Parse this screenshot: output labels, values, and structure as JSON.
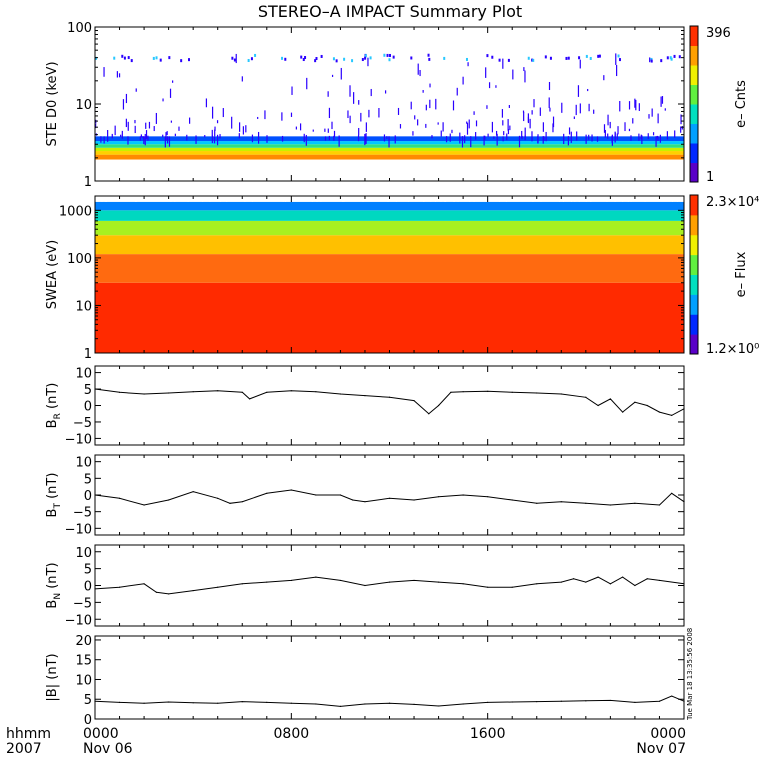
{
  "title": "STEREO–A IMPACT Summary Plot",
  "timestamp_text": "Tue Mar 18 13:35:56 2008",
  "time_axis": {
    "label_top": "hhmm",
    "label_bottom": "2007",
    "ticks": [
      {
        "hour": 0,
        "top": "0000",
        "bottom": "Nov 06"
      },
      {
        "hour": 8,
        "top": "0800",
        "bottom": ""
      },
      {
        "hour": 16,
        "top": "1600",
        "bottom": ""
      },
      {
        "hour": 24,
        "top": "0000",
        "bottom": "Nov 07"
      }
    ],
    "range_hours": [
      0,
      24
    ]
  },
  "colors": {
    "ste_streak": "#2a00ff",
    "ste_dots": "#28c8ff"
  },
  "chart_data": [
    {
      "id": "ste",
      "type": "heatmap",
      "ylabel": "STE D0 (keV)",
      "yscale": "log",
      "ylim": [
        1,
        100
      ],
      "yticks": [
        {
          "v": 1,
          "label": "1"
        },
        {
          "v": 10,
          "label": "10"
        },
        {
          "v": 100,
          "label": "100"
        }
      ],
      "colorbar": {
        "label": "e– Cnts",
        "max_label": "396",
        "min_label": "1"
      },
      "bands": [
        {
          "e_low": 1.9,
          "e_high": 2.2,
          "color": "#ff8a00"
        },
        {
          "e_low": 2.2,
          "e_high": 2.45,
          "color": "#ffd000"
        },
        {
          "e_low": 2.45,
          "e_high": 2.7,
          "color": "#c8f000"
        },
        {
          "e_low": 2.7,
          "e_high": 3.0,
          "color": "#30e080"
        },
        {
          "e_low": 3.0,
          "e_high": 3.3,
          "color": "#00c8ff"
        },
        {
          "e_low": 3.3,
          "e_high": 3.8,
          "color": "#0050ff"
        }
      ]
    },
    {
      "id": "swea",
      "type": "heatmap",
      "ylabel": "SWEA (eV)",
      "yscale": "log",
      "ylim": [
        1,
        2000
      ],
      "yticks": [
        {
          "v": 1,
          "label": "1"
        },
        {
          "v": 10,
          "label": "10"
        },
        {
          "v": 100,
          "label": "100"
        },
        {
          "v": 1000,
          "label": "1000"
        }
      ],
      "colorbar": {
        "label": "e– Flux",
        "max_label": "2.3×10⁴",
        "min_label": "1.2×10⁰"
      },
      "bands": [
        {
          "e_low": 1,
          "e_high": 30,
          "color": "#ff2a00"
        },
        {
          "e_low": 30,
          "e_high": 120,
          "color": "#ff6a10"
        },
        {
          "e_low": 120,
          "e_high": 300,
          "color": "#ffc000"
        },
        {
          "e_low": 300,
          "e_high": 600,
          "color": "#a8f020"
        },
        {
          "e_low": 600,
          "e_high": 1000,
          "color": "#00d8c0"
        },
        {
          "e_low": 1000,
          "e_high": 1500,
          "color": "#0080ff"
        }
      ]
    },
    {
      "id": "br",
      "type": "line",
      "ylabel": "B_R (nT)",
      "ylabel_main": "B",
      "ylabel_sub": "R",
      "ylabel_unit": " (nT)",
      "ylim": [
        -12,
        12
      ],
      "yticks": [
        {
          "v": 10,
          "label": "10"
        },
        {
          "v": 5,
          "label": "5"
        },
        {
          "v": 0,
          "label": "0"
        },
        {
          "v": -5,
          "label": "−5"
        },
        {
          "v": -10,
          "label": "−10"
        }
      ],
      "x": [
        0,
        1,
        2,
        3,
        4,
        5,
        6,
        6.3,
        7,
        8,
        9,
        10,
        11,
        12,
        13,
        13.6,
        14,
        14.5,
        15,
        16,
        17,
        18,
        19,
        20,
        20.5,
        21,
        21.5,
        22,
        22.5,
        23,
        23.5,
        24
      ],
      "y": [
        5,
        4,
        3.5,
        3.8,
        4.2,
        4.5,
        4,
        2,
        4,
        4.5,
        4.2,
        3.5,
        3,
        2.5,
        1.5,
        -2.5,
        0,
        4,
        4.2,
        4.3,
        4,
        3.8,
        3.5,
        2.5,
        0,
        2,
        -2,
        1,
        0,
        -2,
        -3,
        -1
      ]
    },
    {
      "id": "bt",
      "type": "line",
      "ylabel": "B_T (nT)",
      "ylabel_main": "B",
      "ylabel_sub": "T",
      "ylabel_unit": " (nT)",
      "ylim": [
        -12,
        12
      ],
      "yticks": [
        {
          "v": 10,
          "label": "10"
        },
        {
          "v": 5,
          "label": "5"
        },
        {
          "v": 0,
          "label": "0"
        },
        {
          "v": -5,
          "label": "−5"
        },
        {
          "v": -10,
          "label": "−10"
        }
      ],
      "x": [
        0,
        1,
        2,
        3,
        4,
        5,
        5.5,
        6,
        7,
        8,
        9,
        10,
        10.5,
        11,
        12,
        13,
        14,
        15,
        16,
        17,
        18,
        19,
        20,
        21,
        22,
        23,
        23.5,
        24
      ],
      "y": [
        0,
        -1,
        -3,
        -1.5,
        1,
        -1,
        -2.5,
        -2,
        0.5,
        1.5,
        0,
        0,
        -1.5,
        -2,
        -1,
        -1.5,
        -0.5,
        0,
        -0.5,
        -1.5,
        -2.5,
        -2,
        -2.5,
        -3,
        -2.5,
        -3,
        0.5,
        -2
      ]
    },
    {
      "id": "bn",
      "type": "line",
      "ylabel": "B_N (nT)",
      "ylabel_main": "B",
      "ylabel_sub": "N",
      "ylabel_unit": " (nT)",
      "ylim": [
        -12,
        12
      ],
      "yticks": [
        {
          "v": 10,
          "label": "10"
        },
        {
          "v": 5,
          "label": "5"
        },
        {
          "v": 0,
          "label": "0"
        },
        {
          "v": -5,
          "label": "−5"
        },
        {
          "v": -10,
          "label": "−10"
        }
      ],
      "x": [
        0,
        1,
        2,
        2.5,
        3,
        4,
        5,
        6,
        7,
        8,
        9,
        10,
        11,
        12,
        13,
        14,
        15,
        16,
        17,
        18,
        19,
        19.5,
        20,
        20.5,
        21,
        21.5,
        22,
        22.5,
        23,
        24
      ],
      "y": [
        -1,
        -0.5,
        0.5,
        -2,
        -2.5,
        -1.5,
        -0.5,
        0.5,
        1,
        1.5,
        2.5,
        1.5,
        0,
        1,
        1.5,
        1,
        0.5,
        -0.5,
        -0.5,
        0.5,
        1,
        2,
        1,
        2.5,
        0.5,
        2.5,
        0,
        2,
        1.5,
        0.5
      ]
    },
    {
      "id": "bmag",
      "type": "line",
      "ylabel": "|B| (nT)",
      "ylabel_main": "|B|",
      "ylabel_sub": "",
      "ylabel_unit": " (nT)",
      "ylim": [
        0,
        21
      ],
      "yticks": [
        {
          "v": 20,
          "label": "20"
        },
        {
          "v": 15,
          "label": "15"
        },
        {
          "v": 10,
          "label": "10"
        },
        {
          "v": 5,
          "label": "5"
        },
        {
          "v": 0,
          "label": "0"
        }
      ],
      "x": [
        0,
        1,
        2,
        3,
        4,
        5,
        6,
        7,
        8,
        9,
        10,
        11,
        12,
        13,
        14,
        15,
        16,
        17,
        18,
        19,
        20,
        21,
        22,
        23,
        23.5,
        24
      ],
      "y": [
        4.5,
        4.2,
        4,
        4.3,
        4.1,
        4,
        4.4,
        4.2,
        4,
        3.8,
        3.2,
        3.8,
        4,
        3.7,
        3.3,
        3.8,
        4.2,
        4.3,
        4.4,
        4.5,
        4.6,
        4.7,
        4.2,
        4.5,
        5.8,
        4.5
      ]
    }
  ]
}
